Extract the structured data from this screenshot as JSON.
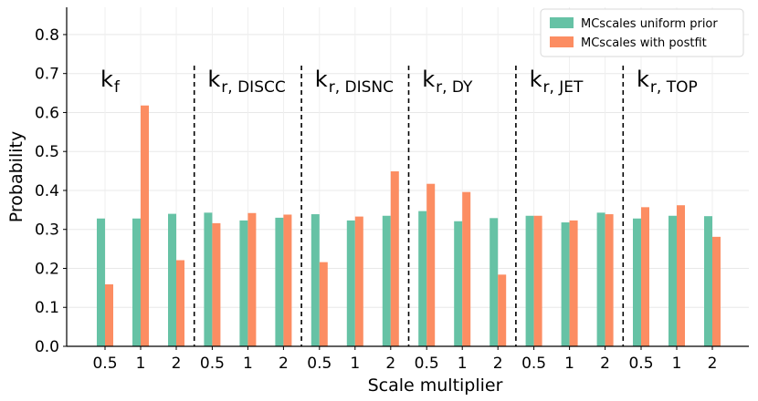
{
  "chart_data": {
    "type": "bar",
    "xlabel": "Scale multiplier",
    "ylabel": "Probability",
    "ylim": [
      0,
      0.87
    ],
    "yticks": [
      "0.0",
      "0.1",
      "0.2",
      "0.3",
      "0.4",
      "0.5",
      "0.6",
      "0.7",
      "0.8"
    ],
    "grid": true,
    "legend_position": "top-right",
    "categories": [
      "0.5",
      "1",
      "2"
    ],
    "series_colors": {
      "prior": "#66c2a5",
      "postfit": "#fc8d62"
    },
    "series_names": [
      "MCscales uniform prior",
      "MCscales with postfit"
    ],
    "groups": [
      {
        "label_main": "k",
        "label_sub": "f",
        "prior": [
          0.328,
          0.328,
          0.34
        ],
        "postfit": [
          0.159,
          0.618,
          0.221
        ]
      },
      {
        "label_main": "k",
        "label_sub": "r, DISCC",
        "prior": [
          0.343,
          0.323,
          0.33
        ],
        "postfit": [
          0.316,
          0.342,
          0.338
        ]
      },
      {
        "label_main": "k",
        "label_sub": "r, DISNC",
        "prior": [
          0.339,
          0.323,
          0.335
        ],
        "postfit": [
          0.216,
          0.333,
          0.449
        ]
      },
      {
        "label_main": "k",
        "label_sub": "r, DY",
        "prior": [
          0.347,
          0.321,
          0.329
        ],
        "postfit": [
          0.417,
          0.396,
          0.184
        ]
      },
      {
        "label_main": "k",
        "label_sub": "r, JET",
        "prior": [
          0.335,
          0.318,
          0.343
        ],
        "postfit": [
          0.335,
          0.323,
          0.339
        ]
      },
      {
        "label_main": "k",
        "label_sub": "r, TOP",
        "prior": [
          0.328,
          0.335,
          0.334
        ],
        "postfit": [
          0.357,
          0.362,
          0.281
        ]
      }
    ]
  }
}
